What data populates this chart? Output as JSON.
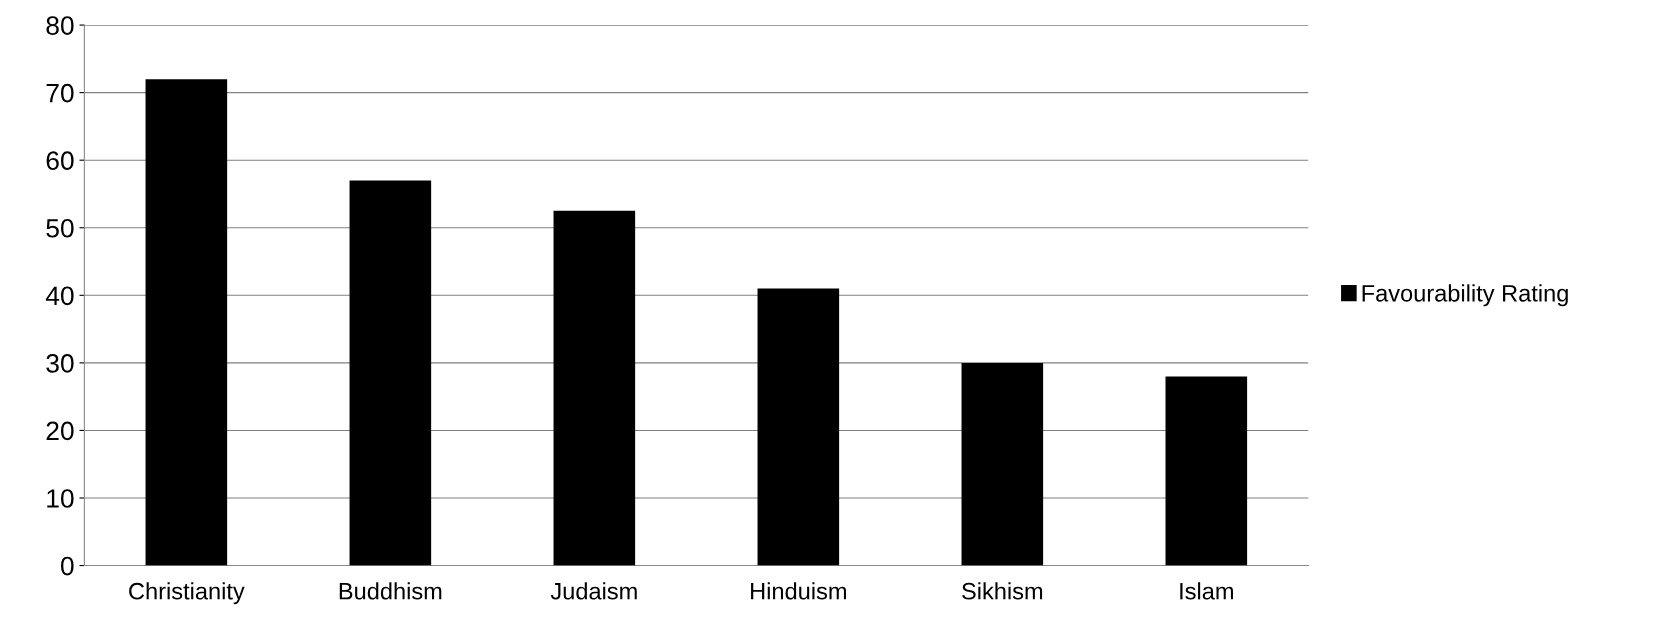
{
  "chart_data": {
    "type": "bar",
    "categories": [
      "Christianity",
      "Buddhism",
      "Judaism",
      "Hinduism",
      "Sikhism",
      "Islam"
    ],
    "series": [
      {
        "name": "Favourability Rating",
        "color": "#000000",
        "values": [
          72,
          57,
          52.5,
          41,
          30,
          28
        ]
      }
    ],
    "ylim": [
      0,
      80
    ],
    "yticks": [
      0,
      10,
      20,
      30,
      40,
      50,
      60,
      70,
      80
    ],
    "grid": "y",
    "legend": "right"
  }
}
